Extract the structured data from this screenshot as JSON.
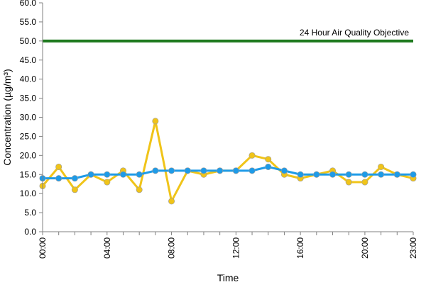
{
  "chart_data": {
    "type": "line",
    "title": "",
    "xlabel": "Time",
    "ylabel": "Concentration (µg/m³)",
    "ylim": [
      0,
      60
    ],
    "y_ticks": [
      "0.0",
      "5.0",
      "10.0",
      "15.0",
      "20.0",
      "25.0",
      "30.0",
      "35.0",
      "40.0",
      "45.0",
      "50.0",
      "55.0",
      "60.0"
    ],
    "x": [
      "00:00",
      "01:00",
      "02:00",
      "03:00",
      "04:00",
      "05:00",
      "06:00",
      "07:00",
      "08:00",
      "09:00",
      "10:00",
      "11:00",
      "12:00",
      "13:00",
      "14:00",
      "15:00",
      "16:00",
      "17:00",
      "18:00",
      "19:00",
      "20:00",
      "21:00",
      "22:00",
      "23:00"
    ],
    "x_tick_labels": [
      "00:00",
      "04:00",
      "08:00",
      "12:00",
      "16:00",
      "20:00",
      "23:00"
    ],
    "grid": false,
    "series": [
      {
        "color": "#f0c419",
        "values": [
          12,
          17,
          11,
          15,
          13,
          16,
          11,
          29,
          8,
          16,
          15,
          16,
          16,
          20,
          19,
          15,
          14,
          15,
          16,
          13,
          13,
          17,
          15,
          14
        ]
      },
      {
        "color": "#1e9be8",
        "values": [
          14,
          14,
          14,
          15,
          15,
          15,
          15,
          16,
          16,
          16,
          16,
          16,
          16,
          16,
          17,
          16,
          15,
          15,
          15,
          15,
          15,
          15,
          15,
          15
        ]
      }
    ],
    "reference_line": {
      "label": "24 Hour Air Quality Objective",
      "value": 50,
      "color": "#1e7a1e"
    }
  }
}
